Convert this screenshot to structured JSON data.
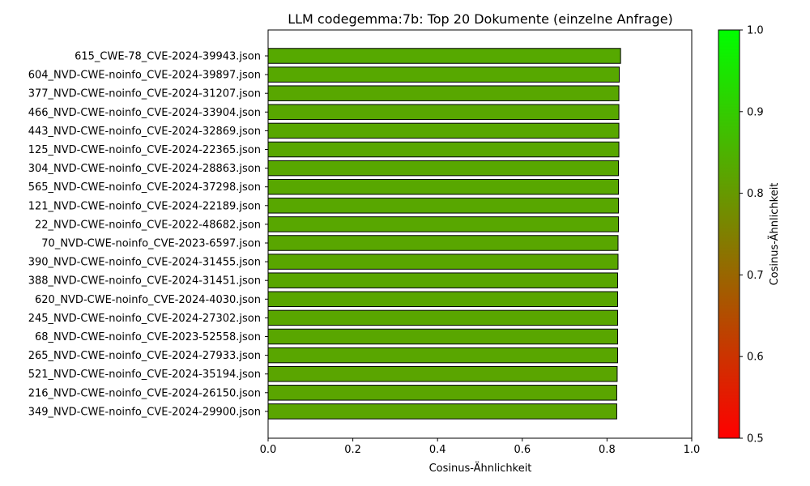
{
  "chart_data": {
    "type": "bar",
    "orientation": "horizontal",
    "title": "LLM codegemma:7b: Top 20 Dokumente (einzelne Anfrage)",
    "xlabel": "Cosinus-Ähnlichkeit",
    "ylabel": "",
    "xlim": [
      0.0,
      1.0
    ],
    "xticks": [
      "0.0",
      "0.2",
      "0.4",
      "0.6",
      "0.8",
      "1.0"
    ],
    "grid": false,
    "categories": [
      "615_CWE-78_CVE-2024-39943.json",
      "604_NVD-CWE-noinfo_CVE-2024-39897.json",
      "377_NVD-CWE-noinfo_CVE-2024-31207.json",
      "466_NVD-CWE-noinfo_CVE-2024-33904.json",
      "443_NVD-CWE-noinfo_CVE-2024-32869.json",
      "125_NVD-CWE-noinfo_CVE-2024-22365.json",
      "304_NVD-CWE-noinfo_CVE-2024-28863.json",
      "565_NVD-CWE-noinfo_CVE-2024-37298.json",
      "121_NVD-CWE-noinfo_CVE-2024-22189.json",
      "22_NVD-CWE-noinfo_CVE-2022-48682.json",
      "70_NVD-CWE-noinfo_CVE-2023-6597.json",
      "390_NVD-CWE-noinfo_CVE-2024-31455.json",
      "388_NVD-CWE-noinfo_CVE-2024-31451.json",
      "620_NVD-CWE-noinfo_CVE-2024-4030.json",
      "245_NVD-CWE-noinfo_CVE-2024-27302.json",
      "68_NVD-CWE-noinfo_CVE-2023-52558.json",
      "265_NVD-CWE-noinfo_CVE-2024-27933.json",
      "521_NVD-CWE-noinfo_CVE-2024-35194.json",
      "216_NVD-CWE-noinfo_CVE-2024-26150.json",
      "349_NVD-CWE-noinfo_CVE-2024-29900.json"
    ],
    "values": [
      0.832,
      0.829,
      0.828,
      0.828,
      0.828,
      0.828,
      0.827,
      0.827,
      0.827,
      0.827,
      0.826,
      0.826,
      0.825,
      0.825,
      0.825,
      0.825,
      0.825,
      0.824,
      0.823,
      0.823
    ],
    "colorbar": {
      "label": "Cosinus-Ähnlichkeit",
      "range": [
        0.5,
        1.0
      ],
      "ticks": [
        "0.5",
        "0.6",
        "0.7",
        "0.8",
        "0.9",
        "1.0"
      ],
      "color_low": "#ff0000",
      "color_high": "#00ff00"
    },
    "bar_edge_color": "#000000"
  }
}
